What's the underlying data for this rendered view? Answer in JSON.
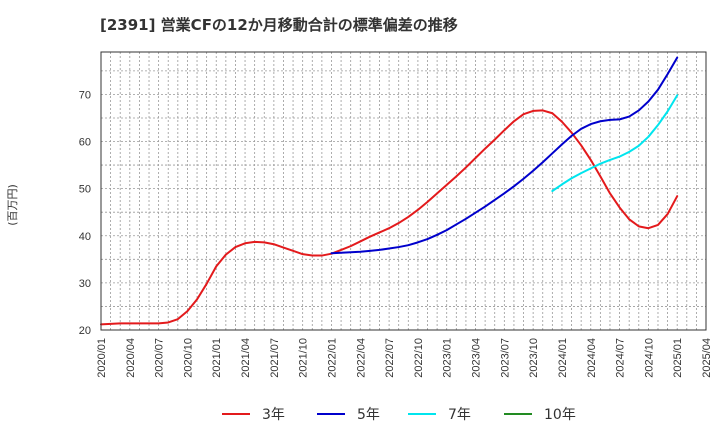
{
  "chart_data": {
    "type": "line",
    "title": "[2391]  営業CFの12か月移動合計の標準偏差の推移",
    "ylabel": "(百万円)",
    "ylim": [
      20,
      79
    ],
    "yticks": [
      20,
      30,
      40,
      50,
      60,
      70
    ],
    "x_start": "2020/01",
    "x_end": "2025/04",
    "xticks": [
      "2020/01",
      "2020/04",
      "2020/07",
      "2020/10",
      "2021/01",
      "2021/04",
      "2021/07",
      "2021/10",
      "2022/01",
      "2022/04",
      "2022/07",
      "2022/10",
      "2023/01",
      "2023/04",
      "2023/07",
      "2023/10",
      "2024/01",
      "2024/04",
      "2024/07",
      "2024/10",
      "2025/01",
      "2025/04"
    ],
    "grid": true,
    "legend_position": "bottom",
    "series": [
      {
        "name": "3年",
        "color": "#e31a1c",
        "x": [
          "2020/01",
          "2020/02",
          "2020/03",
          "2020/04",
          "2020/05",
          "2020/06",
          "2020/07",
          "2020/08",
          "2020/09",
          "2020/10",
          "2020/11",
          "2020/12",
          "2021/01",
          "2021/02",
          "2021/03",
          "2021/04",
          "2021/05",
          "2021/06",
          "2021/07",
          "2021/08",
          "2021/09",
          "2021/10",
          "2021/11",
          "2021/12",
          "2022/01",
          "2022/02",
          "2022/03",
          "2022/04",
          "2022/05",
          "2022/06",
          "2022/07",
          "2022/08",
          "2022/09",
          "2022/10",
          "2022/11",
          "2022/12",
          "2023/01",
          "2023/02",
          "2023/03",
          "2023/04",
          "2023/05",
          "2023/06",
          "2023/07",
          "2023/08",
          "2023/09",
          "2023/10",
          "2023/11",
          "2023/12",
          "2024/01",
          "2024/02",
          "2024/03",
          "2024/04",
          "2024/05",
          "2024/06",
          "2024/07",
          "2024/08",
          "2024/09",
          "2024/10",
          "2024/11",
          "2024/12",
          "2025/01"
        ],
        "values": [
          21.2,
          21.3,
          21.4,
          21.4,
          21.4,
          21.4,
          21.4,
          21.6,
          22.3,
          24.0,
          26.5,
          29.8,
          33.5,
          36.0,
          37.6,
          38.4,
          38.7,
          38.6,
          38.2,
          37.5,
          36.8,
          36.1,
          35.8,
          35.8,
          36.2,
          37.0,
          37.8,
          38.8,
          39.8,
          40.7,
          41.6,
          42.7,
          44.0,
          45.5,
          47.2,
          49.0,
          50.8,
          52.6,
          54.5,
          56.5,
          58.5,
          60.4,
          62.4,
          64.3,
          65.8,
          66.5,
          66.6,
          66.0,
          64.2,
          61.9,
          59.2,
          56.1,
          52.6,
          49.0,
          46.0,
          43.5,
          42.0,
          41.6,
          42.3,
          44.6,
          48.4
        ]
      },
      {
        "name": "5年",
        "color": "#0000cc",
        "x": [
          "2022/01",
          "2022/02",
          "2022/03",
          "2022/04",
          "2022/05",
          "2022/06",
          "2022/07",
          "2022/08",
          "2022/09",
          "2022/10",
          "2022/11",
          "2022/12",
          "2023/01",
          "2023/02",
          "2023/03",
          "2023/04",
          "2023/05",
          "2023/06",
          "2023/07",
          "2023/08",
          "2023/09",
          "2023/10",
          "2023/11",
          "2023/12",
          "2024/01",
          "2024/02",
          "2024/03",
          "2024/04",
          "2024/05",
          "2024/06",
          "2024/07",
          "2024/08",
          "2024/09",
          "2024/10",
          "2024/11",
          "2024/12",
          "2025/01"
        ],
        "values": [
          36.3,
          36.4,
          36.5,
          36.6,
          36.8,
          37.0,
          37.3,
          37.6,
          38.0,
          38.6,
          39.3,
          40.2,
          41.2,
          42.4,
          43.6,
          44.9,
          46.2,
          47.6,
          49.0,
          50.5,
          52.1,
          53.8,
          55.6,
          57.5,
          59.4,
          61.2,
          62.7,
          63.7,
          64.3,
          64.6,
          64.7,
          65.3,
          66.6,
          68.5,
          71.0,
          74.3,
          77.8
        ]
      },
      {
        "name": "7年",
        "color": "#00e5ee",
        "x": [
          "2023/12",
          "2024/01",
          "2024/02",
          "2024/03",
          "2024/04",
          "2024/05",
          "2024/06",
          "2024/07",
          "2024/08",
          "2024/09",
          "2024/10",
          "2024/11",
          "2024/12",
          "2025/01"
        ],
        "values": [
          49.5,
          50.9,
          52.2,
          53.3,
          54.3,
          55.3,
          56.1,
          56.8,
          57.8,
          59.1,
          61.0,
          63.5,
          66.4,
          69.8
        ]
      },
      {
        "name": "10年",
        "color": "#228b22",
        "x": [],
        "values": []
      }
    ]
  }
}
